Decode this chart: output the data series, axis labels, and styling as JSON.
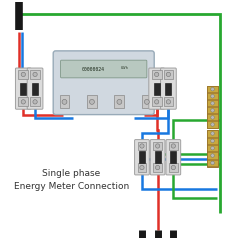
{
  "bg": "#ffffff",
  "title1": "Single phase",
  "title2": "Energy Meter Connection",
  "tfont": 6.5,
  "red": "#e03028",
  "blue": "#1878e0",
  "green": "#28a830",
  "black": "#181818",
  "cb_face": "#dcdcdc",
  "cb_edge": "#a0a0a0",
  "cb_term_face": "#c8c8c8",
  "cb_term_edge": "#888888",
  "cb_handle": "#282828",
  "screw": "#b8b8b8",
  "meter_face": "#d0d8e0",
  "meter_edge": "#98aab8",
  "screen_face": "#b8c8c0",
  "screen_edge": "#809888",
  "term_face": "#c8a840",
  "term_edge": "#906820",
  "term_bg": "#d0b050",
  "lw": 1.8
}
